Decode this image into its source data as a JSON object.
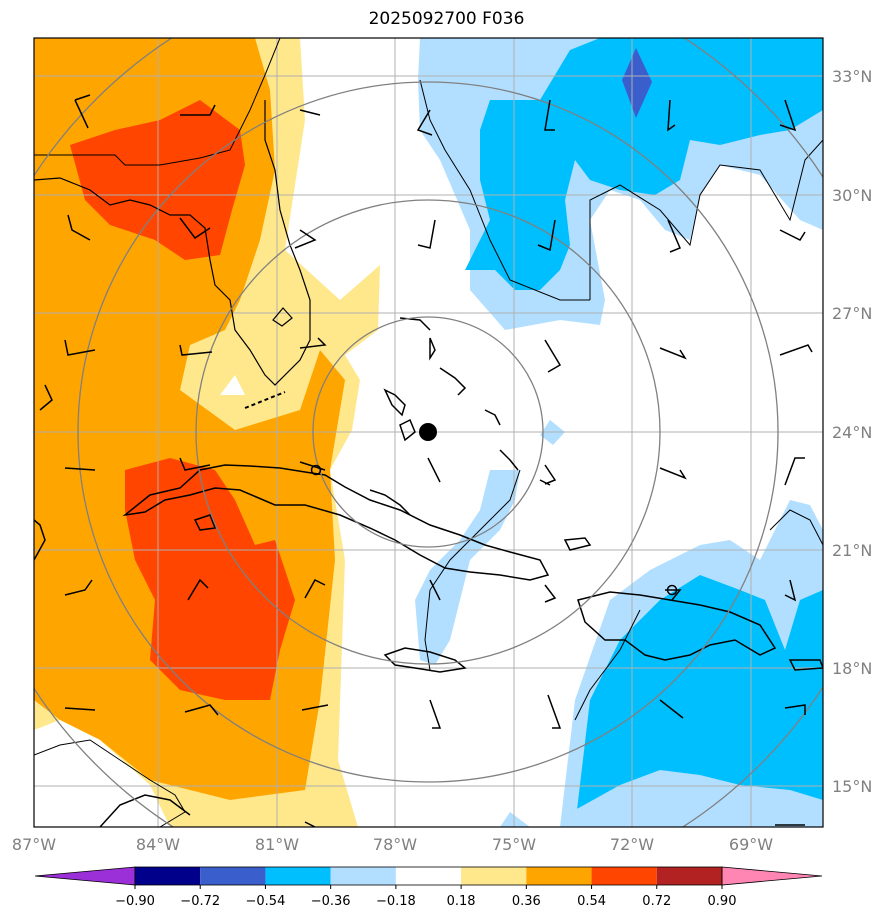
{
  "title": "2025092700 F036",
  "map": {
    "lon_range": [
      -87,
      -66.5
    ],
    "lat_range": [
      14,
      34
    ],
    "lon_ticks": [
      -87,
      -84,
      -81,
      -78,
      -75,
      -72,
      -69
    ],
    "lat_ticks": [
      15,
      18,
      21,
      24,
      27,
      30,
      33
    ],
    "lon_labels": [
      "87°W",
      "84°W",
      "81°W",
      "78°W",
      "75°W",
      "72°W",
      "69°W"
    ],
    "lat_labels": [
      "15°N",
      "18°N",
      "21°N",
      "24°N",
      "27°N",
      "30°N",
      "33°N"
    ],
    "center_marker": {
      "lon": -77.0,
      "lat": 24.0
    }
  },
  "colorbar": {
    "levels": [
      "−0.90",
      "−0.72",
      "−0.54",
      "−0.36",
      "−0.18",
      "0.18",
      "0.36",
      "0.54",
      "0.72",
      "0.90"
    ],
    "colors": [
      "#9b30d9",
      "#00008b",
      "#3a5fcd",
      "#00bfff",
      "#b2dfff",
      "#ffffff",
      "#ffe88c",
      "#ffa500",
      "#ff4500",
      "#b22222",
      "#ff85b3"
    ]
  }
}
